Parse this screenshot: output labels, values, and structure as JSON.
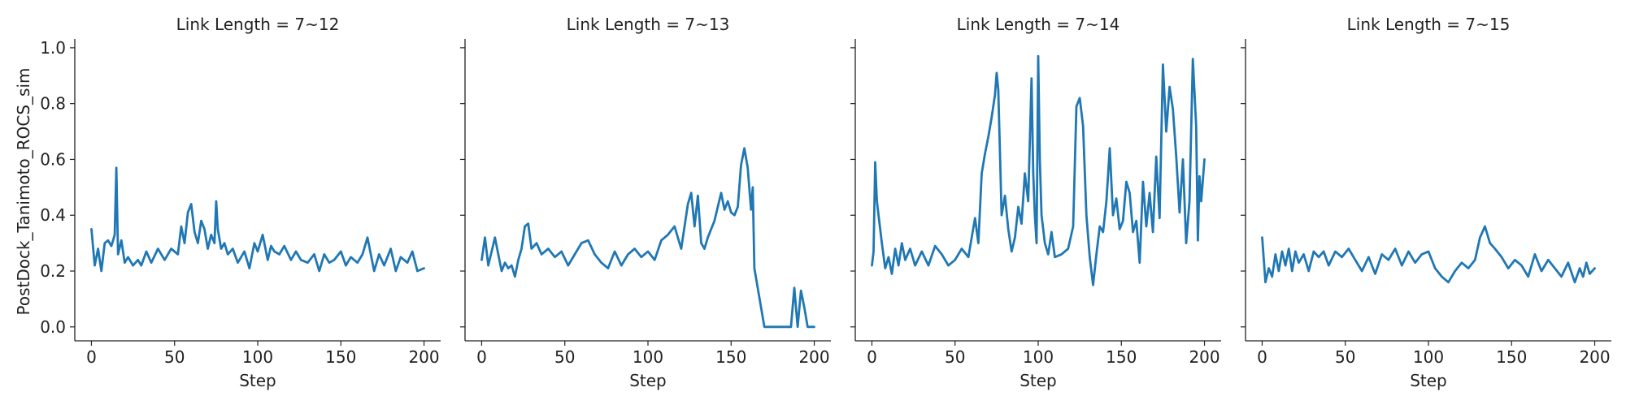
{
  "chart_data": {
    "type": "line",
    "layout": "facet-grid-1x4",
    "shared_y": true,
    "ylabel": "PostDock_Tanimoto_ROCS_sim",
    "ylim": [
      -0.05,
      1.02
    ],
    "yticks": [
      0.0,
      0.2,
      0.4,
      0.6,
      0.8,
      1.0
    ],
    "ytick_labels": [
      "0.0",
      "0.2",
      "0.4",
      "0.6",
      "0.8",
      "1.0"
    ],
    "xlim": [
      -10,
      210
    ],
    "xticks": [
      0,
      50,
      100,
      150,
      200
    ],
    "xtick_labels": [
      "0",
      "50",
      "100",
      "150",
      "200"
    ],
    "line_color": "#1f77b4",
    "grid": false,
    "panels": [
      {
        "title": "Link Length = 7~12",
        "xlabel": "Step",
        "x": [
          0,
          2,
          4,
          6,
          8,
          10,
          12,
          14,
          15,
          16,
          18,
          20,
          22,
          25,
          28,
          30,
          33,
          36,
          40,
          44,
          48,
          52,
          54,
          56,
          58,
          60,
          62,
          64,
          66,
          68,
          70,
          72,
          74,
          75,
          76,
          78,
          80,
          82,
          85,
          88,
          92,
          95,
          98,
          100,
          103,
          106,
          108,
          110,
          113,
          116,
          120,
          123,
          126,
          130,
          134,
          137,
          140,
          143,
          146,
          150,
          153,
          156,
          160,
          163,
          166,
          170,
          173,
          176,
          180,
          183,
          186,
          190,
          193,
          196,
          200
        ],
        "values": [
          0.35,
          0.22,
          0.28,
          0.2,
          0.3,
          0.31,
          0.29,
          0.33,
          0.57,
          0.26,
          0.31,
          0.23,
          0.25,
          0.22,
          0.24,
          0.22,
          0.27,
          0.23,
          0.28,
          0.24,
          0.28,
          0.26,
          0.36,
          0.3,
          0.41,
          0.44,
          0.34,
          0.3,
          0.38,
          0.35,
          0.28,
          0.33,
          0.3,
          0.45,
          0.35,
          0.28,
          0.3,
          0.26,
          0.28,
          0.23,
          0.27,
          0.21,
          0.3,
          0.27,
          0.33,
          0.24,
          0.29,
          0.27,
          0.26,
          0.29,
          0.24,
          0.27,
          0.24,
          0.23,
          0.26,
          0.2,
          0.26,
          0.23,
          0.24,
          0.27,
          0.22,
          0.25,
          0.23,
          0.26,
          0.32,
          0.2,
          0.26,
          0.22,
          0.28,
          0.2,
          0.25,
          0.23,
          0.27,
          0.2,
          0.21
        ]
      },
      {
        "title": "Link Length = 7~13",
        "xlabel": "Step",
        "x": [
          0,
          2,
          4,
          6,
          8,
          10,
          12,
          14,
          16,
          18,
          20,
          22,
          24,
          26,
          28,
          30,
          33,
          36,
          40,
          44,
          48,
          52,
          56,
          60,
          64,
          68,
          72,
          76,
          80,
          84,
          88,
          92,
          96,
          100,
          104,
          108,
          112,
          116,
          120,
          124,
          126,
          128,
          130,
          132,
          134,
          136,
          140,
          144,
          146,
          148,
          150,
          152,
          154,
          156,
          158,
          160,
          162,
          163,
          164,
          166,
          168,
          170,
          172,
          174,
          176,
          178,
          180,
          182,
          184,
          186,
          188,
          190,
          192,
          194,
          196,
          198,
          200
        ],
        "values": [
          0.24,
          0.32,
          0.22,
          0.27,
          0.32,
          0.26,
          0.2,
          0.23,
          0.21,
          0.22,
          0.18,
          0.24,
          0.28,
          0.36,
          0.37,
          0.28,
          0.3,
          0.26,
          0.28,
          0.25,
          0.27,
          0.22,
          0.26,
          0.3,
          0.31,
          0.26,
          0.23,
          0.21,
          0.27,
          0.22,
          0.26,
          0.28,
          0.25,
          0.27,
          0.24,
          0.31,
          0.33,
          0.36,
          0.28,
          0.44,
          0.48,
          0.36,
          0.47,
          0.3,
          0.28,
          0.32,
          0.38,
          0.48,
          0.42,
          0.45,
          0.41,
          0.4,
          0.43,
          0.58,
          0.64,
          0.57,
          0.42,
          0.5,
          0.21,
          0.14,
          0.07,
          0.0,
          0.0,
          0.0,
          0.0,
          0.0,
          0.0,
          0.0,
          0.0,
          0.0,
          0.14,
          0.0,
          0.13,
          0.07,
          0.0,
          0.0,
          0.0
        ]
      },
      {
        "title": "Link Length = 7~14",
        "xlabel": "Step",
        "x": [
          0,
          1,
          2,
          3,
          4,
          6,
          8,
          10,
          12,
          14,
          16,
          18,
          20,
          23,
          26,
          30,
          34,
          38,
          42,
          46,
          50,
          54,
          58,
          62,
          64,
          66,
          68,
          70,
          72,
          74,
          75,
          76,
          78,
          80,
          82,
          84,
          86,
          88,
          90,
          92,
          94,
          96,
          97,
          98,
          99,
          100,
          101,
          102,
          104,
          106,
          108,
          110,
          114,
          118,
          121,
          123,
          125,
          127,
          129,
          131,
          133,
          135,
          137,
          139,
          141,
          143,
          145,
          147,
          149,
          151,
          153,
          155,
          157,
          159,
          161,
          163,
          165,
          167,
          169,
          171,
          173,
          175,
          177,
          179,
          181,
          183,
          185,
          187,
          189,
          191,
          193,
          195,
          196,
          197,
          198,
          200
        ],
        "values": [
          0.22,
          0.27,
          0.59,
          0.45,
          0.4,
          0.3,
          0.21,
          0.25,
          0.19,
          0.28,
          0.22,
          0.3,
          0.24,
          0.28,
          0.22,
          0.27,
          0.22,
          0.29,
          0.26,
          0.22,
          0.24,
          0.28,
          0.25,
          0.39,
          0.3,
          0.55,
          0.62,
          0.68,
          0.75,
          0.83,
          0.91,
          0.85,
          0.4,
          0.47,
          0.35,
          0.27,
          0.32,
          0.43,
          0.37,
          0.55,
          0.45,
          0.89,
          0.55,
          0.4,
          0.3,
          0.97,
          0.6,
          0.4,
          0.3,
          0.26,
          0.34,
          0.25,
          0.26,
          0.28,
          0.36,
          0.79,
          0.82,
          0.72,
          0.4,
          0.25,
          0.15,
          0.26,
          0.36,
          0.34,
          0.45,
          0.64,
          0.4,
          0.46,
          0.35,
          0.38,
          0.52,
          0.48,
          0.34,
          0.38,
          0.23,
          0.52,
          0.36,
          0.48,
          0.34,
          0.61,
          0.39,
          0.94,
          0.7,
          0.86,
          0.78,
          0.61,
          0.41,
          0.6,
          0.3,
          0.45,
          0.96,
          0.72,
          0.31,
          0.54,
          0.45,
          0.6
        ]
      },
      {
        "title": "Link Length = 7~15",
        "xlabel": "Step",
        "x": [
          0,
          2,
          4,
          6,
          8,
          10,
          12,
          14,
          16,
          18,
          20,
          22,
          25,
          28,
          31,
          34,
          37,
          40,
          44,
          48,
          52,
          56,
          60,
          64,
          68,
          72,
          76,
          80,
          84,
          88,
          92,
          96,
          100,
          104,
          108,
          112,
          116,
          120,
          124,
          128,
          131,
          134,
          137,
          140,
          144,
          148,
          152,
          156,
          160,
          164,
          168,
          172,
          176,
          180,
          184,
          188,
          191,
          193,
          195,
          197,
          200
        ],
        "values": [
          0.32,
          0.16,
          0.21,
          0.18,
          0.26,
          0.2,
          0.27,
          0.22,
          0.28,
          0.2,
          0.27,
          0.23,
          0.26,
          0.2,
          0.27,
          0.25,
          0.27,
          0.22,
          0.27,
          0.25,
          0.28,
          0.24,
          0.2,
          0.25,
          0.19,
          0.26,
          0.24,
          0.28,
          0.22,
          0.27,
          0.23,
          0.26,
          0.27,
          0.21,
          0.18,
          0.16,
          0.2,
          0.23,
          0.21,
          0.24,
          0.32,
          0.36,
          0.3,
          0.28,
          0.25,
          0.21,
          0.24,
          0.22,
          0.18,
          0.26,
          0.2,
          0.24,
          0.21,
          0.18,
          0.23,
          0.16,
          0.21,
          0.18,
          0.23,
          0.19,
          0.21
        ]
      }
    ]
  }
}
